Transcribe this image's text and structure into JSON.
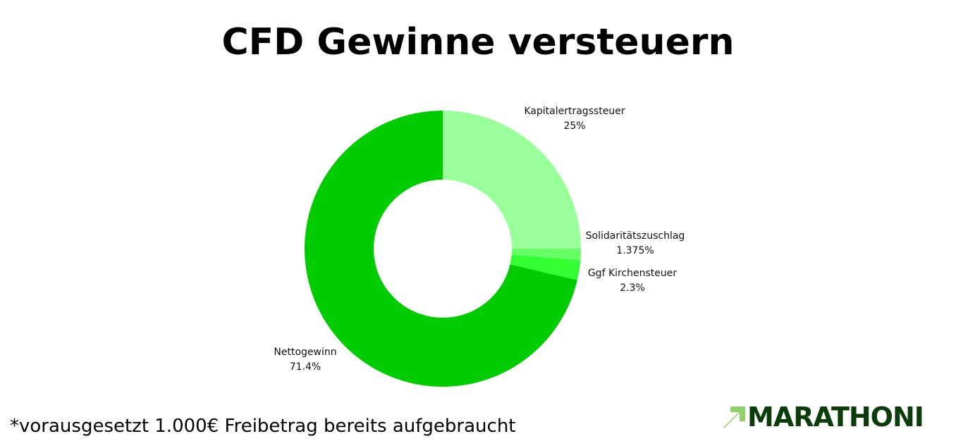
{
  "title": "CFD Gewinne versteuern",
  "footnote": "*vorausgesetzt 1.000€ Freibetrag bereits aufgebraucht",
  "logo": {
    "text": "MARATHONI",
    "icon": "arrow-up-right-icon",
    "color": "#0a3d0a",
    "icon_color": "#8fd16a"
  },
  "chart_data": {
    "type": "pie",
    "style": "donut",
    "title": "CFD Gewinne versteuern",
    "slices": [
      {
        "name": "Kapitalertragssteuer",
        "label": "25%",
        "value": 25,
        "color": "#99ff99"
      },
      {
        "name": "Solidaritätszuschlag",
        "label": "1.375%",
        "value": 1.375,
        "color": "#66ff66"
      },
      {
        "name": "Ggf Kirchensteuer",
        "label": "2.3%",
        "value": 2.3,
        "color": "#33ff33"
      },
      {
        "name": "Nettogewinn",
        "label": "71.4%",
        "value": 71.4,
        "color": "#00cc00"
      }
    ]
  }
}
